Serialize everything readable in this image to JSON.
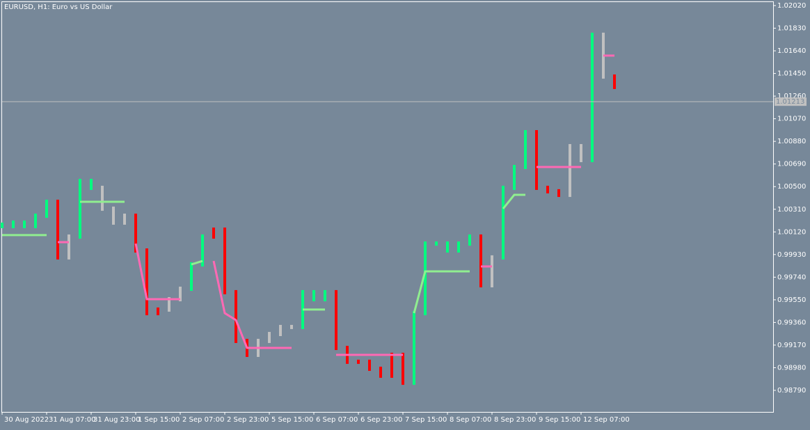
{
  "chart_data": {
    "type": "bars",
    "title": "EURUSD, H1:  Euro vs US Dollar",
    "background": "#778899",
    "x": [
      0,
      4,
      8,
      12,
      16,
      20,
      24,
      28,
      32,
      36,
      40,
      44,
      48,
      52,
      56,
      60,
      64,
      68,
      72,
      76,
      80,
      84,
      88,
      92,
      96,
      100,
      104,
      108,
      112,
      116,
      120,
      124,
      128,
      132,
      136,
      140,
      144,
      148,
      152,
      156,
      160,
      164,
      168,
      172,
      176,
      180,
      184,
      188,
      192,
      196,
      200,
      204,
      208,
      212,
      216,
      220
    ],
    "xlim": [
      0,
      277
    ],
    "xticks": [
      {
        "value": 0,
        "label": "30 Aug 2022"
      },
      {
        "value": 16,
        "label": "31 Aug 07:00"
      },
      {
        "value": 32,
        "label": "31 Aug 23:00"
      },
      {
        "value": 48,
        "label": "1 Sep 15:00"
      },
      {
        "value": 64,
        "label": "2 Sep 07:00"
      },
      {
        "value": 80,
        "label": "2 Sep 23:00"
      },
      {
        "value": 96,
        "label": "5 Sep 15:00"
      },
      {
        "value": 112,
        "label": "6 Sep 07:00"
      },
      {
        "value": 128,
        "label": "6 Sep 23:00"
      },
      {
        "value": 144,
        "label": "7 Sep 15:00"
      },
      {
        "value": 160,
        "label": "8 Sep 07:00"
      },
      {
        "value": 176,
        "label": "8 Sep 23:00"
      },
      {
        "value": 192,
        "label": "9 Sep 15:00"
      },
      {
        "value": 208,
        "label": "12 Sep 07:00"
      }
    ],
    "ylim": [
      0.98609,
      1.02055
    ],
    "yticks": [
      {
        "value": 1.0202,
        "label": "1.02020"
      },
      {
        "value": 1.0183,
        "label": "1.01830"
      },
      {
        "value": 1.0164,
        "label": "1.01640"
      },
      {
        "value": 1.0145,
        "label": "1.01450"
      },
      {
        "value": 1.0126,
        "label": "1.01260"
      },
      {
        "value": 1.0107,
        "label": "1.01070"
      },
      {
        "value": 1.0088,
        "label": "1.00880"
      },
      {
        "value": 1.0069,
        "label": "1.00690"
      },
      {
        "value": 1.005,
        "label": "1.00500"
      },
      {
        "value": 1.0031,
        "label": "1.00310"
      },
      {
        "value": 1.0012,
        "label": "1.00120"
      },
      {
        "value": 0.9993,
        "label": "0.99930"
      },
      {
        "value": 0.9974,
        "label": "0.99740"
      },
      {
        "value": 0.9955,
        "label": "0.99550"
      },
      {
        "value": 0.9936,
        "label": "0.99360"
      },
      {
        "value": 0.9917,
        "label": "0.99170"
      },
      {
        "value": 0.9898,
        "label": "0.98980"
      },
      {
        "value": 0.9879,
        "label": "0.98790"
      }
    ],
    "current_price": {
      "value": 1.01213,
      "label": "1.01213"
    },
    "series": [
      {
        "color": "#00ff7f",
        "values": [
          1.00169,
          1.00198,
          1.00169,
          1.00256,
          1.00373,
          null,
          null,
          1.00548,
          1.0049,
          null,
          null,
          null,
          null,
          null,
          null,
          null,
          null,
          0.99847,
          1.00081,
          null,
          null,
          null,
          null,
          null,
          null,
          null,
          null,
          0.99614,
          0.99555,
          0.99614,
          null,
          null,
          null,
          null,
          null,
          null,
          null,
          0.99438,
          1.00022,
          1.00022,
          0.99964,
          1.00022,
          1.00081,
          null,
          null,
          1.0049,
          1.00665,
          1.00957,
          null,
          null,
          null,
          null,
          null,
          1.01775,
          null,
          null
        ]
      },
      {
        "color": "#ff0000",
        "values": [
          null,
          null,
          null,
          null,
          null,
          0.99906,
          null,
          null,
          null,
          null,
          null,
          null,
          0.99964,
          0.99438,
          0.99468,
          null,
          null,
          null,
          null,
          1.00139,
          0.99614,
          0.99205,
          0.99088,
          null,
          null,
          null,
          null,
          null,
          null,
          null,
          0.99146,
          0.9903,
          0.9903,
          0.98971,
          0.98913,
          0.99088,
          0.98854,
          null,
          null,
          null,
          null,
          null,
          null,
          0.99672,
          null,
          null,
          null,
          null,
          1.0049,
          1.00461,
          1.00431,
          null,
          null,
          null,
          null,
          1.01337
        ]
      },
      {
        "color": "#c0c0c0",
        "values": [
          null,
          null,
          null,
          null,
          null,
          null,
          1.00081,
          null,
          null,
          1.00315,
          1.00198,
          1.00256,
          null,
          null,
          null,
          0.99555,
          0.99643,
          null,
          null,
          null,
          null,
          null,
          null,
          0.99205,
          0.99263,
          0.99322,
          0.99322,
          null,
          null,
          null,
          null,
          null,
          null,
          null,
          null,
          null,
          null,
          null,
          null,
          null,
          null,
          null,
          null,
          null,
          0.99906,
          null,
          null,
          null,
          null,
          null,
          null,
          1.0084,
          1.00723,
          null,
          1.01424,
          null
        ]
      }
    ],
    "lines": [
      {
        "color": "#90ee90",
        "values": [
          1.00093,
          1.00093,
          1.00093,
          1.00093,
          1.00093,
          null,
          null,
          1.00373,
          1.00373,
          1.00373,
          1.00373,
          1.00373,
          null,
          null,
          null,
          null,
          null,
          0.99847,
          0.99876,
          null,
          null,
          null,
          null,
          null,
          null,
          null,
          null,
          0.99468,
          0.99468,
          0.99468,
          null,
          null,
          null,
          null,
          null,
          null,
          null,
          0.99438,
          0.99789,
          0.99789,
          0.99789,
          0.99789,
          0.99789,
          null,
          null,
          1.00315,
          1.00431,
          1.00431,
          null,
          null,
          null,
          null,
          null,
          1.01629,
          null,
          null
        ]
      },
      {
        "color": "#ff69b4",
        "values": [
          null,
          null,
          null,
          null,
          null,
          1.00034,
          1.00034,
          null,
          null,
          null,
          null,
          null,
          1.00022,
          0.99555,
          0.99555,
          0.99555,
          0.99555,
          null,
          null,
          0.99876,
          0.99438,
          0.9938,
          0.99146,
          0.99146,
          0.99146,
          0.99146,
          0.99146,
          null,
          null,
          null,
          0.99088,
          0.99088,
          0.99088,
          0.99088,
          0.99088,
          0.99088,
          0.99088,
          null,
          null,
          null,
          null,
          null,
          null,
          0.9983,
          0.9983,
          null,
          null,
          null,
          1.00665,
          1.00665,
          1.00665,
          1.00665,
          1.00665,
          null,
          1.016,
          1.016
        ]
      }
    ]
  }
}
